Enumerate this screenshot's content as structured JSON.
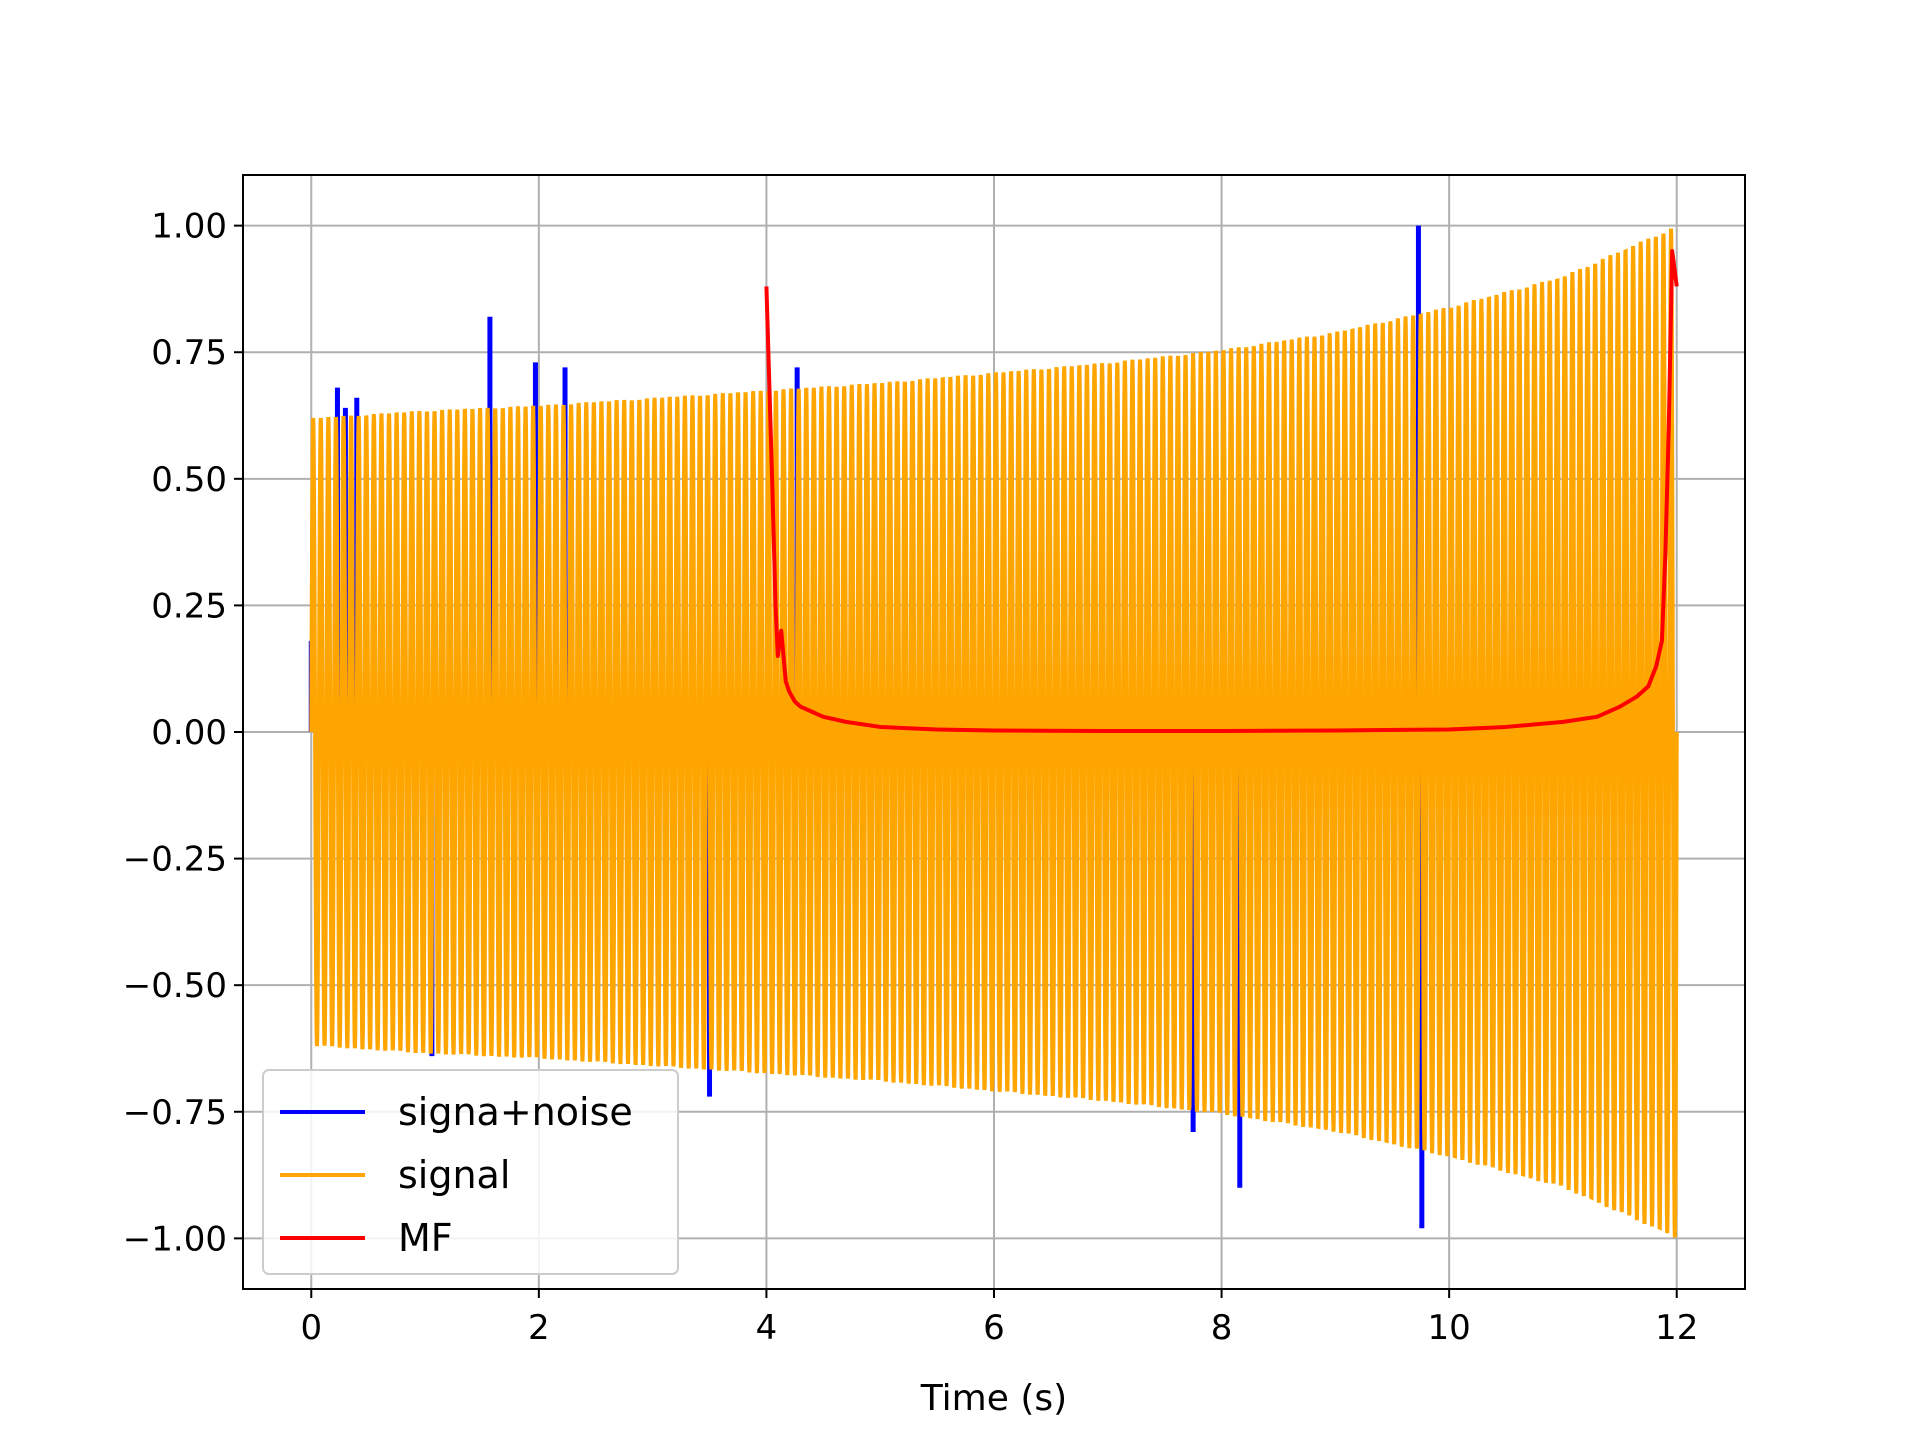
{
  "chart_data": {
    "type": "line",
    "title": "",
    "xlabel": "Time (s)",
    "ylabel": "",
    "xlim": [
      -0.6,
      12.6
    ],
    "ylim": [
      -1.1,
      1.1
    ],
    "grid": true,
    "legend_position": "lower-left",
    "x_ticks": [
      0,
      2,
      4,
      6,
      8,
      10,
      12
    ],
    "x_tick_labels": [
      "0",
      "2",
      "4",
      "6",
      "8",
      "10",
      "12"
    ],
    "y_ticks": [
      1.0,
      0.75,
      0.5,
      0.25,
      0.0,
      -0.25,
      -0.5,
      -0.75,
      -1.0
    ],
    "y_tick_labels": [
      "1.00",
      "0.75",
      "0.50",
      "0.25",
      "0.00",
      "−0.25",
      "−0.50",
      "−0.75",
      "−1.00"
    ],
    "series": [
      {
        "name": "signa+noise",
        "color": "#0000ff",
        "description_points": {
          "x": [
            0.0,
            0.23,
            0.3,
            0.4,
            1.06,
            1.57,
            1.97,
            2.23,
            3.5,
            4.27,
            7.75,
            8.16,
            9.73,
            9.76
          ],
          "y": [
            0.18,
            0.68,
            0.64,
            0.66,
            -0.64,
            0.82,
            0.73,
            0.72,
            -0.72,
            0.72,
            -0.79,
            -0.9,
            1.0,
            -0.98
          ]
        }
      },
      {
        "name": "signal",
        "color": "#ffa500",
        "envelope": {
          "x": [
            0,
            1,
            2,
            3,
            4,
            5,
            6,
            7,
            8,
            9,
            10,
            11,
            12
          ],
          "y": [
            0.62,
            0.635,
            0.645,
            0.66,
            0.675,
            0.69,
            0.71,
            0.73,
            0.755,
            0.79,
            0.84,
            0.9,
            1.0
          ]
        }
      },
      {
        "name": "MF",
        "color": "#ff0000",
        "x": [
          4.0,
          4.05,
          4.08,
          4.1,
          4.13,
          4.17,
          4.2,
          4.25,
          4.3,
          4.4,
          4.5,
          4.7,
          5.0,
          5.5,
          6.0,
          7.0,
          8.0,
          9.0,
          10.0,
          10.5,
          11.0,
          11.3,
          11.5,
          11.65,
          11.75,
          11.82,
          11.87,
          11.9,
          11.93,
          11.96,
          12.0
        ],
        "y": [
          0.88,
          0.5,
          0.25,
          0.15,
          0.2,
          0.1,
          0.08,
          0.06,
          0.05,
          0.04,
          0.03,
          0.02,
          0.01,
          0.005,
          0.003,
          0.002,
          0.002,
          0.003,
          0.005,
          0.01,
          0.02,
          0.03,
          0.05,
          0.07,
          0.09,
          0.13,
          0.18,
          0.35,
          0.6,
          0.95,
          0.88
        ]
      }
    ]
  }
}
